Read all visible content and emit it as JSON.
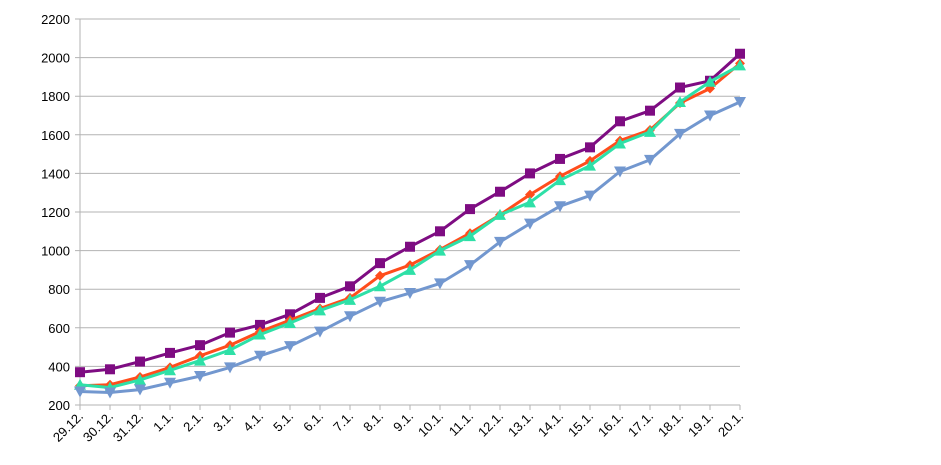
{
  "chart_data": {
    "type": "line",
    "title": "",
    "xlabel": "",
    "ylabel": "",
    "ylim": [
      200,
      2200
    ],
    "yticks": [
      200,
      400,
      600,
      800,
      1000,
      1200,
      1400,
      1600,
      1800,
      2000,
      2200
    ],
    "grid": true,
    "legend": "none",
    "categories": [
      "29.12.",
      "30.12.",
      "31.12.",
      "1.1.",
      "2.1.",
      "3.1.",
      "4.1.",
      "5.1.",
      "6.1.",
      "7.1.",
      "8.1.",
      "9.1.",
      "10.1.",
      "11.1.",
      "12.1.",
      "13.1.",
      "14.1.",
      "15.1.",
      "16.1.",
      "17.1.",
      "18.1.",
      "19.1.",
      "20.1."
    ],
    "series": [
      {
        "color": "#7e0c82",
        "marker": "square",
        "values": [
          370,
          385,
          425,
          470,
          510,
          575,
          615,
          670,
          755,
          815,
          935,
          1020,
          1100,
          1215,
          1305,
          1400,
          1475,
          1535,
          1670,
          1725,
          1845,
          1880,
          2020
        ]
      },
      {
        "color": "#ff4d1c",
        "marker": "diamond",
        "values": [
          300,
          305,
          345,
          395,
          455,
          510,
          580,
          640,
          700,
          755,
          870,
          925,
          1005,
          1090,
          1185,
          1290,
          1385,
          1465,
          1570,
          1625,
          1765,
          1840,
          1970
        ]
      },
      {
        "color": "#2ee0a7",
        "marker": "triangle-up",
        "values": [
          305,
          290,
          330,
          380,
          430,
          485,
          565,
          625,
          690,
          745,
          815,
          900,
          1000,
          1075,
          1185,
          1250,
          1365,
          1440,
          1555,
          1615,
          1770,
          1875,
          1960
        ]
      },
      {
        "color": "#7297cf",
        "marker": "triangle-down",
        "values": [
          270,
          265,
          280,
          315,
          350,
          395,
          455,
          505,
          580,
          660,
          735,
          780,
          830,
          925,
          1045,
          1140,
          1230,
          1285,
          1410,
          1470,
          1605,
          1700,
          1770
        ]
      }
    ]
  }
}
